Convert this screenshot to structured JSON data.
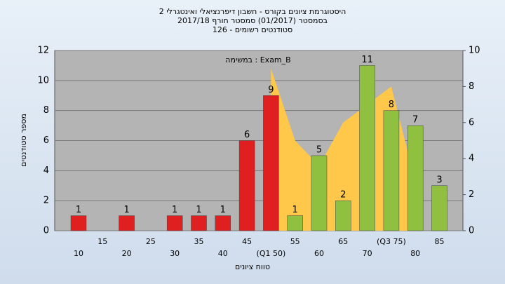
{
  "chart_data": {
    "type": "bar",
    "title": "היסטוגרמת ציונים בקורס - חשבון דיפרנציאלי ואינטגרלי 2",
    "subtitle": "בסמסטר  (01/2017)  סמסטר חורף  2017/18",
    "subtitle2": "סטודנטים רשומים - 126",
    "annotation": "במשימה : Exam_B",
    "y_label": "מספר סטודנטים",
    "x_label": "טווח ציונים",
    "categories": [
      "10",
      "15",
      "20",
      "25",
      "30",
      "35",
      "40",
      "45",
      "(Q1 50)",
      "55",
      "60",
      "65",
      "70",
      "(Q3 75)",
      "80",
      "85"
    ],
    "series": [
      {
        "values": [
          1,
          0,
          1,
          0,
          1,
          1,
          1,
          6,
          9,
          1,
          5,
          2,
          11,
          8,
          7,
          3
        ],
        "colors": [
          "#e02020",
          "#e02020",
          "#e02020",
          "#e02020",
          "#e02020",
          "#e02020",
          "#e02020",
          "#e02020",
          "#e02020",
          "#8fc040",
          "#8fc040",
          "#8fc040",
          "#8fc040",
          "#8fc040",
          "#8fc040",
          "#8fc040"
        ]
      },
      {
        "type": "area",
        "axis": "y2",
        "color": "#ffc84a",
        "values": [
          null,
          null,
          null,
          null,
          null,
          null,
          null,
          null,
          9,
          5,
          3.6,
          6,
          7,
          8,
          2.7,
          null
        ]
      }
    ],
    "ylim": [
      0,
      12
    ],
    "yticks": [
      0,
      2,
      4,
      6,
      8,
      10,
      12
    ],
    "y2lim": [
      0,
      10
    ],
    "y2ticks": [
      0,
      2,
      4,
      6,
      8,
      10
    ],
    "grid": true
  }
}
